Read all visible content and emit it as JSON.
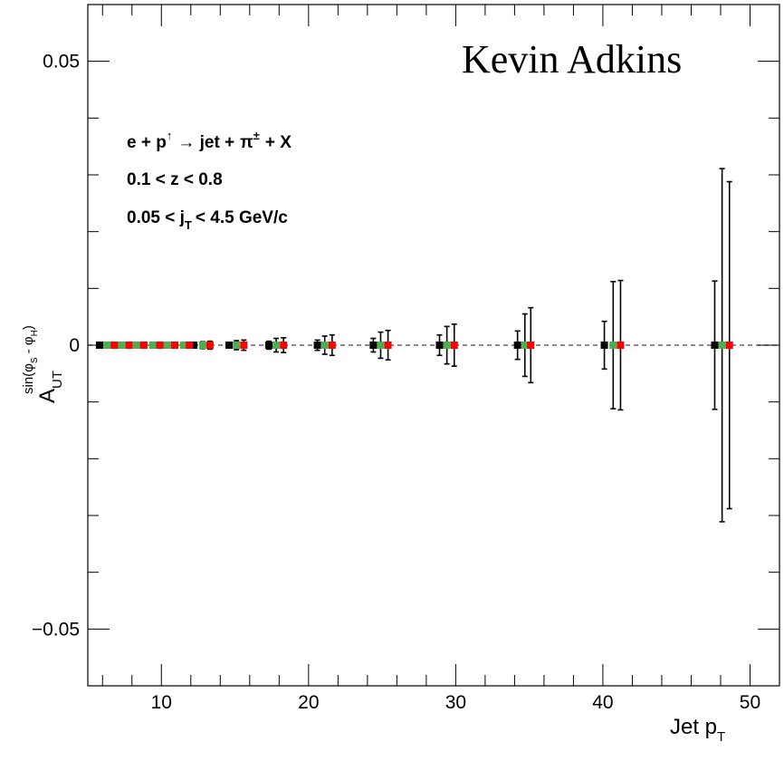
{
  "watermark": "Kevin Adkins",
  "annotations": {
    "line1_a": "e + p",
    "line1_arrow_up": "↑",
    "line1_b": "→ jet +",
    "line1_pi": "π",
    "line1_pm": "±",
    "line1_c": "+ X",
    "line2": "0.1 < z < 0.8",
    "line3_a": "0.05 < j",
    "line3_sub": "T",
    "line3_b": "< 4.5 GeV/c"
  },
  "axes": {
    "x_title_main": "Jet p",
    "x_title_sub": "T",
    "y_title_main": "A",
    "y_title_sub": "UT",
    "y_title_sup": "sin(φ",
    "y_title_sup_s": "S",
    "y_title_sup_mid": " - φ",
    "y_title_sup_h": "H",
    "y_title_sup_end": ")"
  },
  "colors": {
    "series1": "#000000",
    "series2": "#4caf50",
    "series3": "#ff0000",
    "zero_line": "#666666"
  },
  "chart_data": {
    "type": "scatter",
    "xlim": [
      5,
      52
    ],
    "ylim": [
      -0.06,
      0.06
    ],
    "x_ticks": [
      10,
      20,
      30,
      40,
      50
    ],
    "x_tick_labels": [
      "10",
      "20",
      "30",
      "40",
      "50"
    ],
    "y_ticks": [
      -0.05,
      0,
      0.05
    ],
    "y_tick_labels": [
      "−0.05",
      "0",
      "0.05"
    ],
    "zero_line": true,
    "series": [
      {
        "color": "#000000",
        "x": [
          5.8,
          6.8,
          7.8,
          8.8,
          9.9,
          10.9,
          12.2,
          14.6,
          17.3,
          20.6,
          24.4,
          28.9,
          34.2,
          40.1,
          47.6
        ],
        "y": [
          0,
          0,
          0,
          0,
          0,
          0,
          0,
          0,
          0,
          0,
          0,
          0,
          0,
          0,
          0
        ],
        "err": [
          0.0002,
          0.0002,
          0.0002,
          0.0002,
          0.0003,
          0.0003,
          0.0004,
          0.0005,
          0.0007,
          0.0009,
          0.0012,
          0.0018,
          0.0025,
          0.0042,
          0.0113
        ]
      },
      {
        "color": "#4caf50",
        "x": [
          6.3,
          7.3,
          8.3,
          9.4,
          10.4,
          11.5,
          12.8,
          15.1,
          17.8,
          21.1,
          24.9,
          29.4,
          34.7,
          40.7,
          48.1
        ],
        "y": [
          0,
          0,
          0,
          0,
          0,
          0,
          0,
          0,
          0,
          0,
          0,
          0,
          0,
          0,
          0
        ],
        "err": [
          0.0003,
          0.0003,
          0.0003,
          0.0004,
          0.0004,
          0.0005,
          0.0006,
          0.0008,
          0.0012,
          0.0016,
          0.0023,
          0.0033,
          0.0055,
          0.0112,
          0.0311
        ]
      },
      {
        "color": "#ff0000",
        "x": [
          6.8,
          7.8,
          8.8,
          9.9,
          10.9,
          11.9,
          13.3,
          15.6,
          18.3,
          21.6,
          25.4,
          29.9,
          35.1,
          41.2,
          48.6
        ],
        "y": [
          0,
          0,
          0,
          0,
          0,
          0,
          0,
          0,
          0,
          0,
          0,
          0,
          0,
          0,
          0
        ],
        "err": [
          0.0003,
          0.0003,
          0.0004,
          0.0004,
          0.0005,
          0.0005,
          0.0007,
          0.0009,
          0.0013,
          0.0018,
          0.0026,
          0.0037,
          0.0066,
          0.0114,
          0.0288
        ]
      }
    ]
  }
}
